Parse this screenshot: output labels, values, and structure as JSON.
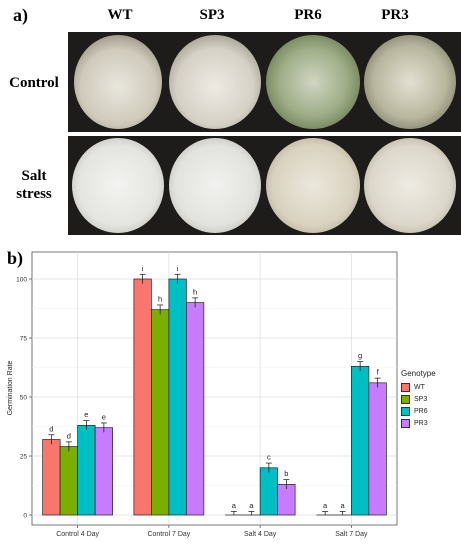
{
  "panel_a": {
    "label": "a)",
    "columns": [
      "WT",
      "SP3",
      "PR6",
      "PR3"
    ],
    "rows": [
      "Control",
      "Salt stress"
    ]
  },
  "panel_b": {
    "label": "b)"
  },
  "chart_data": {
    "type": "bar",
    "title": "",
    "xlabel": "",
    "ylabel": "Germination Rate",
    "categories": [
      "Control 4 Day",
      "Control 7 Day",
      "Salt 4 Day",
      "Salt 7 Day"
    ],
    "ylim": [
      0,
      105
    ],
    "yticks": [
      0,
      25,
      50,
      75,
      100
    ],
    "grid": true,
    "legend_title": "Genotype",
    "legend_position": "right",
    "series": [
      {
        "name": "WT",
        "color": "#F8766D",
        "values": [
          32,
          100,
          0,
          0
        ],
        "errors": [
          2,
          2,
          1.5,
          1.5
        ],
        "letters": [
          "d",
          "i",
          "a",
          "a"
        ]
      },
      {
        "name": "SP3",
        "color": "#7CAE00",
        "values": [
          29,
          87,
          0,
          0
        ],
        "errors": [
          2,
          2,
          1.5,
          1.5
        ],
        "letters": [
          "d",
          "h",
          "a",
          "a"
        ]
      },
      {
        "name": "PR6",
        "color": "#00BFC4",
        "values": [
          38,
          100,
          20,
          63
        ],
        "errors": [
          2,
          2,
          2,
          2
        ],
        "letters": [
          "e",
          "i",
          "c",
          "g"
        ]
      },
      {
        "name": "PR3",
        "color": "#C77CFF",
        "values": [
          37,
          90,
          13,
          56
        ],
        "errors": [
          2,
          2,
          2,
          2
        ],
        "letters": [
          "e",
          "h",
          "b",
          "f"
        ]
      }
    ]
  }
}
